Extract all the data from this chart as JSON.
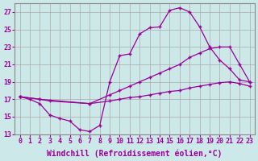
{
  "xlabel": "Windchill (Refroidissement éolien,°C)",
  "background_color": "#cce8e8",
  "grid_color": "#aaaaaa",
  "line_color": "#990099",
  "xlim": [
    -0.5,
    23.5
  ],
  "ylim": [
    13,
    28
  ],
  "xticks": [
    0,
    1,
    2,
    3,
    4,
    5,
    6,
    7,
    8,
    9,
    10,
    11,
    12,
    13,
    14,
    15,
    16,
    17,
    18,
    19,
    20,
    21,
    22,
    23
  ],
  "yticks": [
    13,
    15,
    17,
    19,
    21,
    23,
    25,
    27
  ],
  "curves": [
    {
      "x": [
        0,
        1,
        2,
        3,
        4,
        5,
        6,
        7,
        8,
        9,
        10,
        11,
        12,
        13,
        14,
        15,
        16,
        17,
        18,
        19,
        20,
        21,
        22,
        23
      ],
      "y": [
        17.3,
        17.0,
        16.5,
        15.2,
        14.8,
        14.5,
        13.5,
        13.3,
        14.0,
        19.0,
        22.0,
        22.2,
        24.5,
        25.2,
        25.3,
        27.2,
        27.5,
        27.0,
        25.3,
        23.0,
        21.5,
        20.5,
        19.2,
        19.0
      ]
    },
    {
      "x": [
        0,
        2,
        3,
        7,
        9,
        10,
        11,
        12,
        13,
        14,
        15,
        16,
        17,
        18,
        19,
        20,
        21,
        22,
        23
      ],
      "y": [
        17.3,
        17.0,
        16.8,
        16.5,
        17.5,
        18.0,
        18.5,
        19.0,
        19.5,
        20.0,
        20.5,
        21.0,
        21.8,
        22.3,
        22.8,
        23.0,
        23.0,
        21.0,
        19.0
      ]
    },
    {
      "x": [
        0,
        2,
        7,
        9,
        10,
        11,
        12,
        13,
        14,
        15,
        16,
        17,
        18,
        19,
        20,
        21,
        22,
        23
      ],
      "y": [
        17.3,
        17.0,
        16.5,
        16.8,
        17.0,
        17.2,
        17.3,
        17.5,
        17.7,
        17.9,
        18.0,
        18.3,
        18.5,
        18.7,
        18.9,
        19.0,
        18.8,
        18.5
      ]
    }
  ],
  "tick_fontsize": 6,
  "label_fontsize": 7
}
